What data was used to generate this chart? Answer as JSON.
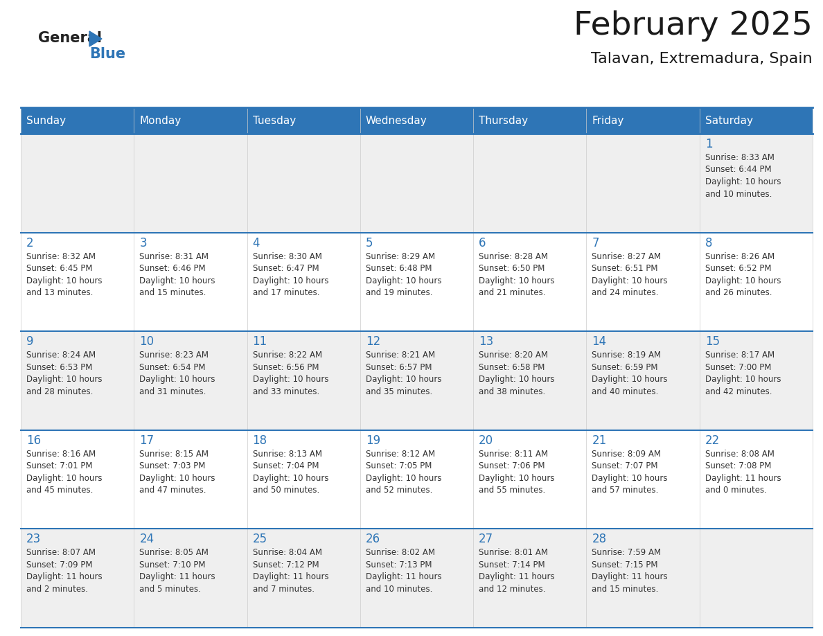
{
  "title": "February 2025",
  "subtitle": "Talavan, Extremadura, Spain",
  "header_bg": "#2E75B6",
  "header_text_color": "#FFFFFF",
  "row_bg_gray": "#EFEFEF",
  "row_bg_white": "#FFFFFF",
  "border_color": "#2E75B6",
  "border_thin_color": "#B8C9DD",
  "day_headers": [
    "Sunday",
    "Monday",
    "Tuesday",
    "Wednesday",
    "Thursday",
    "Friday",
    "Saturday"
  ],
  "title_color": "#1a1a1a",
  "subtitle_color": "#1a1a1a",
  "day_num_color": "#2E75B6",
  "cell_text_color": "#333333",
  "days_data": [
    {
      "day": 1,
      "col": 6,
      "row": 0,
      "sunrise": "8:33 AM",
      "sunset": "6:44 PM",
      "daylight": "10 hours and 10 minutes."
    },
    {
      "day": 2,
      "col": 0,
      "row": 1,
      "sunrise": "8:32 AM",
      "sunset": "6:45 PM",
      "daylight": "10 hours and 13 minutes."
    },
    {
      "day": 3,
      "col": 1,
      "row": 1,
      "sunrise": "8:31 AM",
      "sunset": "6:46 PM",
      "daylight": "10 hours and 15 minutes."
    },
    {
      "day": 4,
      "col": 2,
      "row": 1,
      "sunrise": "8:30 AM",
      "sunset": "6:47 PM",
      "daylight": "10 hours and 17 minutes."
    },
    {
      "day": 5,
      "col": 3,
      "row": 1,
      "sunrise": "8:29 AM",
      "sunset": "6:48 PM",
      "daylight": "10 hours and 19 minutes."
    },
    {
      "day": 6,
      "col": 4,
      "row": 1,
      "sunrise": "8:28 AM",
      "sunset": "6:50 PM",
      "daylight": "10 hours and 21 minutes."
    },
    {
      "day": 7,
      "col": 5,
      "row": 1,
      "sunrise": "8:27 AM",
      "sunset": "6:51 PM",
      "daylight": "10 hours and 24 minutes."
    },
    {
      "day": 8,
      "col": 6,
      "row": 1,
      "sunrise": "8:26 AM",
      "sunset": "6:52 PM",
      "daylight": "10 hours and 26 minutes."
    },
    {
      "day": 9,
      "col": 0,
      "row": 2,
      "sunrise": "8:24 AM",
      "sunset": "6:53 PM",
      "daylight": "10 hours and 28 minutes."
    },
    {
      "day": 10,
      "col": 1,
      "row": 2,
      "sunrise": "8:23 AM",
      "sunset": "6:54 PM",
      "daylight": "10 hours and 31 minutes."
    },
    {
      "day": 11,
      "col": 2,
      "row": 2,
      "sunrise": "8:22 AM",
      "sunset": "6:56 PM",
      "daylight": "10 hours and 33 minutes."
    },
    {
      "day": 12,
      "col": 3,
      "row": 2,
      "sunrise": "8:21 AM",
      "sunset": "6:57 PM",
      "daylight": "10 hours and 35 minutes."
    },
    {
      "day": 13,
      "col": 4,
      "row": 2,
      "sunrise": "8:20 AM",
      "sunset": "6:58 PM",
      "daylight": "10 hours and 38 minutes."
    },
    {
      "day": 14,
      "col": 5,
      "row": 2,
      "sunrise": "8:19 AM",
      "sunset": "6:59 PM",
      "daylight": "10 hours and 40 minutes."
    },
    {
      "day": 15,
      "col": 6,
      "row": 2,
      "sunrise": "8:17 AM",
      "sunset": "7:00 PM",
      "daylight": "10 hours and 42 minutes."
    },
    {
      "day": 16,
      "col": 0,
      "row": 3,
      "sunrise": "8:16 AM",
      "sunset": "7:01 PM",
      "daylight": "10 hours and 45 minutes."
    },
    {
      "day": 17,
      "col": 1,
      "row": 3,
      "sunrise": "8:15 AM",
      "sunset": "7:03 PM",
      "daylight": "10 hours and 47 minutes."
    },
    {
      "day": 18,
      "col": 2,
      "row": 3,
      "sunrise": "8:13 AM",
      "sunset": "7:04 PM",
      "daylight": "10 hours and 50 minutes."
    },
    {
      "day": 19,
      "col": 3,
      "row": 3,
      "sunrise": "8:12 AM",
      "sunset": "7:05 PM",
      "daylight": "10 hours and 52 minutes."
    },
    {
      "day": 20,
      "col": 4,
      "row": 3,
      "sunrise": "8:11 AM",
      "sunset": "7:06 PM",
      "daylight": "10 hours and 55 minutes."
    },
    {
      "day": 21,
      "col": 5,
      "row": 3,
      "sunrise": "8:09 AM",
      "sunset": "7:07 PM",
      "daylight": "10 hours and 57 minutes."
    },
    {
      "day": 22,
      "col": 6,
      "row": 3,
      "sunrise": "8:08 AM",
      "sunset": "7:08 PM",
      "daylight": "11 hours and 0 minutes."
    },
    {
      "day": 23,
      "col": 0,
      "row": 4,
      "sunrise": "8:07 AM",
      "sunset": "7:09 PM",
      "daylight": "11 hours and 2 minutes."
    },
    {
      "day": 24,
      "col": 1,
      "row": 4,
      "sunrise": "8:05 AM",
      "sunset": "7:10 PM",
      "daylight": "11 hours and 5 minutes."
    },
    {
      "day": 25,
      "col": 2,
      "row": 4,
      "sunrise": "8:04 AM",
      "sunset": "7:12 PM",
      "daylight": "11 hours and 7 minutes."
    },
    {
      "day": 26,
      "col": 3,
      "row": 4,
      "sunrise": "8:02 AM",
      "sunset": "7:13 PM",
      "daylight": "11 hours and 10 minutes."
    },
    {
      "day": 27,
      "col": 4,
      "row": 4,
      "sunrise": "8:01 AM",
      "sunset": "7:14 PM",
      "daylight": "11 hours and 12 minutes."
    },
    {
      "day": 28,
      "col": 5,
      "row": 4,
      "sunrise": "7:59 AM",
      "sunset": "7:15 PM",
      "daylight": "11 hours and 15 minutes."
    }
  ]
}
